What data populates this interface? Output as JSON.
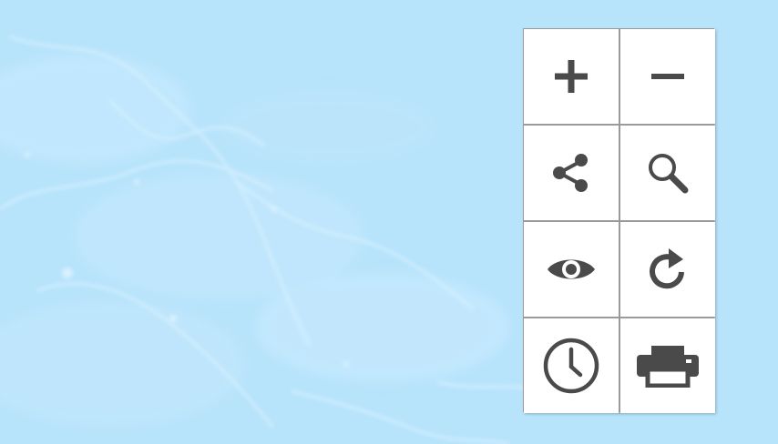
{
  "map": {
    "background_color": "#b7e3fb",
    "feature_color": "#d4efff"
  },
  "toolbar": {
    "icon_color": "#4a4a4a",
    "buttons": [
      {
        "id": "zoom-in",
        "icon": "plus-icon"
      },
      {
        "id": "zoom-out",
        "icon": "minus-icon"
      },
      {
        "id": "share",
        "icon": "share-icon"
      },
      {
        "id": "search",
        "icon": "magnifier-icon"
      },
      {
        "id": "view",
        "icon": "eye-icon"
      },
      {
        "id": "refresh",
        "icon": "refresh-icon"
      },
      {
        "id": "history",
        "icon": "clock-icon"
      },
      {
        "id": "print",
        "icon": "printer-icon"
      }
    ]
  }
}
